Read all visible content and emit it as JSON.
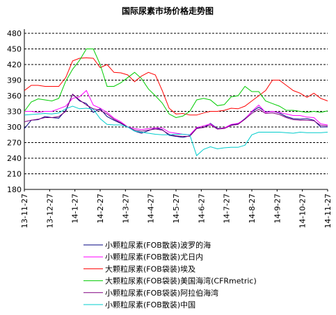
{
  "chart_data": {
    "type": "line",
    "title": "国际尿素市场价格走势图",
    "ylim": [
      180,
      480
    ],
    "y_ticks": [
      180,
      210,
      240,
      270,
      300,
      330,
      360,
      390,
      420,
      450,
      480
    ],
    "x_tick_labels": [
      "13-11-27",
      "13-12-27",
      "14-1-27",
      "14-2-27",
      "14-3-27",
      "14-4-27",
      "14-5-27",
      "14-6-27",
      "14-7-27",
      "14-8-27",
      "14-9-27",
      "14-10-27",
      "14-11-27"
    ],
    "grid": "horizontal-dashed",
    "legend_position": "bottom",
    "series": [
      {
        "name": "小颗粒尿素(FOB散装)波罗的海",
        "color": "#000080",
        "values": [
          297,
          313,
          314,
          320,
          318,
          317,
          332,
          363,
          350,
          345,
          328,
          335,
          320,
          313,
          307,
          300,
          292,
          288,
          293,
          298,
          295,
          284,
          282,
          280,
          283,
          298,
          299,
          307,
          297,
          298,
          304,
          306,
          316,
          329,
          338,
          329,
          330,
          327,
          320,
          316,
          315,
          316,
          313,
          300,
          300
        ]
      },
      {
        "name": "小颗粒尿素(FOB散装)尤日内",
        "color": "#ff00ff",
        "values": [
          330,
          330,
          328,
          330,
          330,
          335,
          340,
          355,
          358,
          370,
          342,
          336,
          328,
          317,
          310,
          300,
          297,
          295,
          297,
          298,
          298,
          290,
          288,
          286,
          285,
          299,
          302,
          306,
          296,
          298,
          305,
          307,
          315,
          330,
          342,
          328,
          330,
          328,
          325,
          322,
          322,
          319,
          318,
          306,
          304
        ]
      },
      {
        "name": "大颗粒尿素(FOB袋装)埃及",
        "color": "#ff0000",
        "values": [
          370,
          380,
          380,
          378,
          378,
          378,
          395,
          427,
          432,
          433,
          432,
          414,
          420,
          405,
          404,
          400,
          387,
          398,
          405,
          400,
          370,
          336,
          325,
          326,
          323,
          323,
          327,
          330,
          330,
          332,
          336,
          335,
          340,
          350,
          360,
          370,
          390,
          390,
          380,
          370,
          365,
          357,
          365,
          355,
          350
        ]
      },
      {
        "name": "大颗粒尿素(FOB袋装)美国海湾(CFRmetric)",
        "color": "#00cc00",
        "values": [
          330,
          348,
          354,
          352,
          350,
          355,
          388,
          411,
          428,
          450,
          450,
          420,
          378,
          378,
          385,
          395,
          405,
          393,
          373,
          360,
          346,
          325,
          318,
          321,
          330,
          352,
          355,
          352,
          341,
          343,
          358,
          360,
          378,
          368,
          368,
          350,
          345,
          340,
          332,
          332,
          330,
          328,
          330,
          328,
          331
        ]
      },
      {
        "name": "小颗粒尿素(FOB袋装)阿拉伯海湾",
        "color": "#800080",
        "values": [
          310,
          313,
          315,
          318,
          318,
          320,
          330,
          363,
          352,
          342,
          335,
          332,
          325,
          315,
          308,
          300,
          294,
          292,
          294,
          296,
          294,
          286,
          283,
          282,
          282,
          297,
          299,
          304,
          296,
          297,
          303,
          305,
          315,
          326,
          334,
          326,
          327,
          324,
          318,
          314,
          313,
          313,
          312,
          303,
          302
        ]
      },
      {
        "name": "小颗粒尿素(FOB散装)中国",
        "color": "#00cccc",
        "values": [
          323,
          324,
          325,
          326,
          325,
          327,
          335,
          340,
          335,
          336,
          334,
          316,
          305,
          304,
          304,
          300,
          292,
          290,
          288,
          286,
          285,
          285,
          286,
          286,
          285,
          245,
          257,
          262,
          258,
          260,
          261,
          261,
          265,
          285,
          290,
          290,
          290,
          290,
          289,
          288,
          290,
          289,
          289,
          289,
          290
        ]
      }
    ]
  }
}
